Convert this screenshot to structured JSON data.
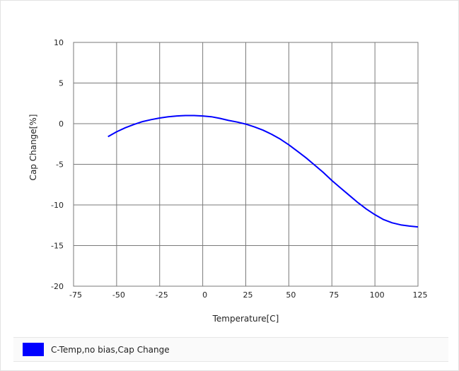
{
  "chart_data": {
    "type": "line",
    "xlabel": "Temperature[C]",
    "ylabel": "Cap Change[%]",
    "xlim": [
      -75,
      125
    ],
    "ylim": [
      -20,
      10
    ],
    "x_ticks": [
      "-75",
      "-50",
      "-25",
      "0",
      "25",
      "50",
      "75",
      "100",
      "125"
    ],
    "y_ticks": [
      "10",
      "5",
      "0",
      "-5",
      "-10",
      "-15",
      "-20"
    ],
    "grid": true,
    "legend_position": "bottom",
    "series": [
      {
        "name": "C-Temp,no bias,Cap Change",
        "color": "#0000ff",
        "x": [
          -55,
          -50,
          -45,
          -40,
          -35,
          -30,
          -25,
          -20,
          -15,
          -10,
          -5,
          0,
          5,
          10,
          15,
          20,
          25,
          30,
          35,
          40,
          45,
          50,
          55,
          60,
          65,
          70,
          75,
          80,
          85,
          90,
          95,
          100,
          105,
          110,
          115,
          120,
          125
        ],
        "values": [
          -1.6,
          -1.0,
          -0.5,
          -0.1,
          0.25,
          0.5,
          0.7,
          0.85,
          0.95,
          1.0,
          1.0,
          0.95,
          0.85,
          0.65,
          0.4,
          0.2,
          -0.05,
          -0.4,
          -0.8,
          -1.3,
          -1.9,
          -2.6,
          -3.4,
          -4.2,
          -5.1,
          -6.0,
          -7.0,
          -7.9,
          -8.8,
          -9.7,
          -10.5,
          -11.2,
          -11.8,
          -12.2,
          -12.45,
          -12.6,
          -12.7
        ]
      }
    ]
  }
}
